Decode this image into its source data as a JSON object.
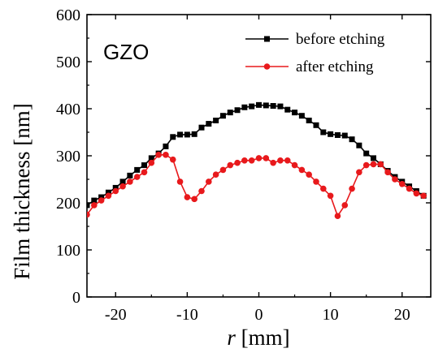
{
  "chart_data": {
    "type": "line",
    "title": "",
    "annotation": "GZO",
    "xlabel_var": "r",
    "xlabel_unit": " [mm]",
    "ylabel": "Film thickness [nm]",
    "xlim": [
      -24,
      24
    ],
    "ylim": [
      0,
      600
    ],
    "xticks": [
      -20,
      -10,
      0,
      10,
      20
    ],
    "yticks": [
      0,
      100,
      200,
      300,
      400,
      500,
      600
    ],
    "grid": false,
    "legend_position": "top-right",
    "series": [
      {
        "name": "before etching",
        "color": "#000000",
        "marker": "square",
        "x": [
          -24,
          -23,
          -22,
          -21,
          -20,
          -19,
          -18,
          -17,
          -16,
          -15,
          -14,
          -13,
          -12,
          -11,
          -10,
          -9,
          -8,
          -7,
          -6,
          -5,
          -4,
          -3,
          -2,
          -1,
          0,
          1,
          2,
          3,
          4,
          5,
          6,
          7,
          8,
          9,
          10,
          11,
          12,
          13,
          14,
          15,
          16,
          17,
          18,
          19,
          20,
          21,
          22,
          23
        ],
        "y": [
          195,
          205,
          212,
          222,
          232,
          245,
          258,
          270,
          280,
          295,
          305,
          320,
          340,
          345,
          345,
          346,
          360,
          368,
          375,
          385,
          392,
          397,
          403,
          405,
          408,
          407,
          406,
          405,
          398,
          392,
          385,
          375,
          365,
          350,
          346,
          344,
          343,
          335,
          322,
          305,
          295,
          282,
          268,
          255,
          245,
          235,
          225,
          215
        ]
      },
      {
        "name": "after etching",
        "color": "#e8191c",
        "marker": "circle",
        "x": [
          -24,
          -23,
          -22,
          -21,
          -20,
          -19,
          -18,
          -17,
          -16,
          -15,
          -14,
          -13,
          -12,
          -11,
          -10,
          -9,
          -8,
          -7,
          -6,
          -5,
          -4,
          -3,
          -2,
          -1,
          0,
          1,
          2,
          3,
          4,
          5,
          6,
          7,
          8,
          9,
          10,
          11,
          12,
          13,
          14,
          15,
          16,
          17,
          18,
          19,
          20,
          21,
          22,
          23
        ],
        "y": [
          175,
          195,
          205,
          215,
          225,
          235,
          245,
          255,
          265,
          285,
          302,
          302,
          292,
          245,
          212,
          208,
          225,
          245,
          260,
          270,
          280,
          285,
          290,
          290,
          295,
          295,
          285,
          290,
          290,
          280,
          270,
          260,
          245,
          230,
          215,
          172,
          195,
          230,
          265,
          280,
          282,
          282,
          265,
          250,
          240,
          230,
          220,
          215
        ]
      }
    ]
  }
}
